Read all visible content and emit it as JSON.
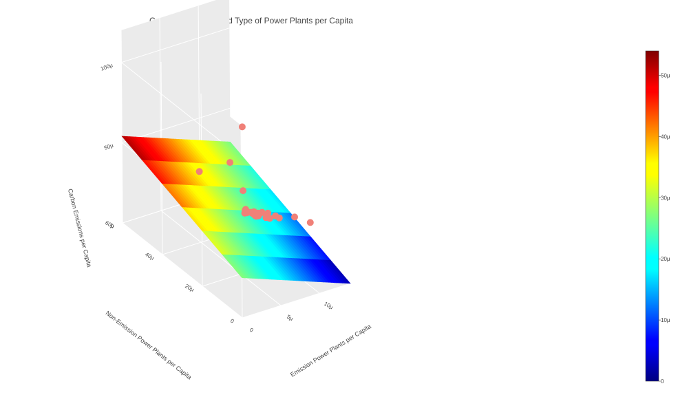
{
  "chart_data": {
    "type": "scatter3d",
    "title": "Carbon Emissions and Type of Power Plants per Capita",
    "axes": {
      "x": {
        "label": "Emission Power Plants per Capita",
        "ticks": [
          0,
          5,
          10
        ],
        "tick_labels": [
          "0",
          "5μ",
          "10μ"
        ],
        "range": [
          0,
          14
        ]
      },
      "y": {
        "label": "Non-Emission Power Plants per Capita",
        "ticks": [
          0,
          20,
          40,
          60
        ],
        "tick_labels": [
          "0",
          "20μ",
          "40μ",
          "60μ"
        ],
        "range": [
          0,
          60
        ]
      },
      "z": {
        "label": "Carbon Emissions per Capita",
        "ticks": [
          0,
          50,
          100
        ],
        "tick_labels": [
          "0",
          "50μ",
          "100μ"
        ],
        "range": [
          0,
          120
        ]
      }
    },
    "surface": {
      "name": "regression-plane",
      "colorscale": "Jet",
      "z_corners": {
        "x0_y0": 25,
        "x14_y0": 0,
        "x0_y60": 54,
        "x14_y60": 29
      }
    },
    "scatter": {
      "color": "#f08078",
      "points": [
        [
          0.3,
          0.5,
          118
        ],
        [
          0.6,
          8,
          88
        ],
        [
          1.0,
          25,
          65
        ],
        [
          1.5,
          5,
          72
        ],
        [
          2.0,
          6,
          58
        ],
        [
          2.2,
          7,
          55
        ],
        [
          2.5,
          5,
          57
        ],
        [
          2.8,
          8,
          54
        ],
        [
          3.0,
          9,
          52
        ],
        [
          3.1,
          10,
          53
        ],
        [
          3.2,
          6,
          55
        ],
        [
          3.4,
          7,
          54
        ],
        [
          3.5,
          11,
          50
        ],
        [
          3.6,
          9,
          51
        ],
        [
          3.8,
          8,
          50
        ],
        [
          4.0,
          10,
          49
        ],
        [
          4.2,
          9,
          48
        ],
        [
          4.5,
          12,
          47
        ],
        [
          5.0,
          11,
          45
        ],
        [
          5.5,
          13,
          44
        ],
        [
          6.0,
          14,
          42
        ],
        [
          6.5,
          15,
          41
        ],
        [
          7.0,
          15,
          37
        ],
        [
          7.5,
          16,
          38
        ],
        [
          8.0,
          17,
          33
        ],
        [
          9.0,
          18,
          32
        ],
        [
          9.5,
          18,
          30
        ],
        [
          12.5,
          22,
          22
        ],
        [
          13.5,
          18,
          21
        ]
      ]
    },
    "colorbar": {
      "ticks": [
        0,
        10,
        20,
        30,
        40,
        50
      ],
      "tick_labels": [
        "0",
        "10μ",
        "20μ",
        "30μ",
        "40μ",
        "50μ"
      ],
      "range": [
        0,
        54
      ]
    },
    "grid": true,
    "legend": "none"
  }
}
